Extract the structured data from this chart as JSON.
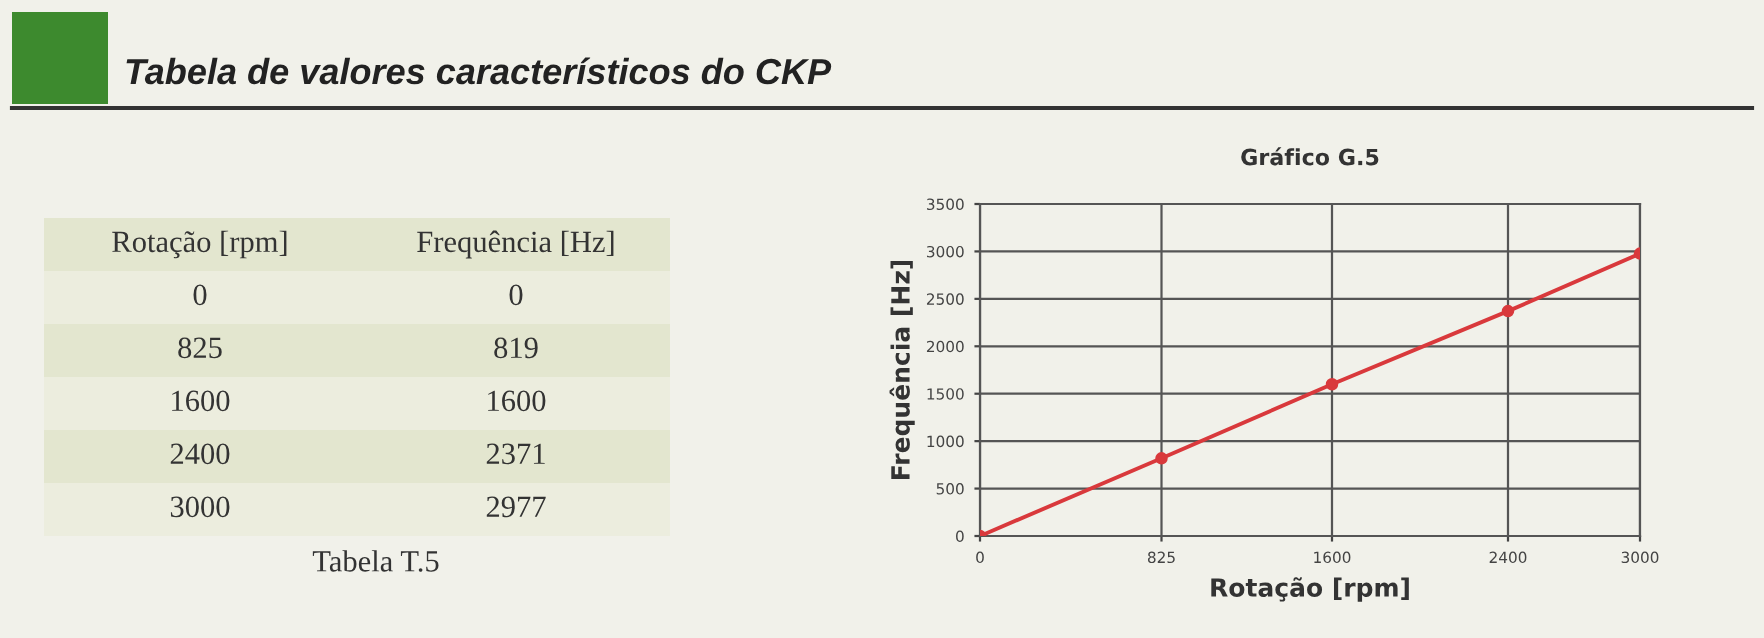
{
  "chart_data": [
    {
      "type": "other",
      "title": "Tabela de valores característicos do CKP",
      "annotations": [
        "Rotação [rpm]",
        "Frequência [Hz]",
        "0",
        "0",
        "825",
        "819",
        "1600",
        "1600",
        "2400",
        "2371",
        "3000",
        "2977",
        "Tabela T.5"
      ]
    },
    {
      "type": "line",
      "subtitle": "Gráfico G.5",
      "xlabel": "Rotação [rpm]",
      "ylabel": "Frequência [Hz]",
      "x": [
        0,
        825,
        1600,
        2400,
        3000
      ],
      "series": [
        {
          "color": "#d9393c",
          "values": [
            0,
            819,
            1600,
            2371,
            2977
          ]
        }
      ],
      "xlim": [
        0,
        3000
      ],
      "xticks": [
        0,
        825,
        1600,
        2400,
        3000
      ],
      "ylim": [
        0,
        3500
      ],
      "yticks": [
        0,
        500,
        1000,
        1500,
        2000,
        2500,
        3000,
        3500
      ],
      "grid": true,
      "marker": "circle",
      "line_style": "solid"
    }
  ]
}
